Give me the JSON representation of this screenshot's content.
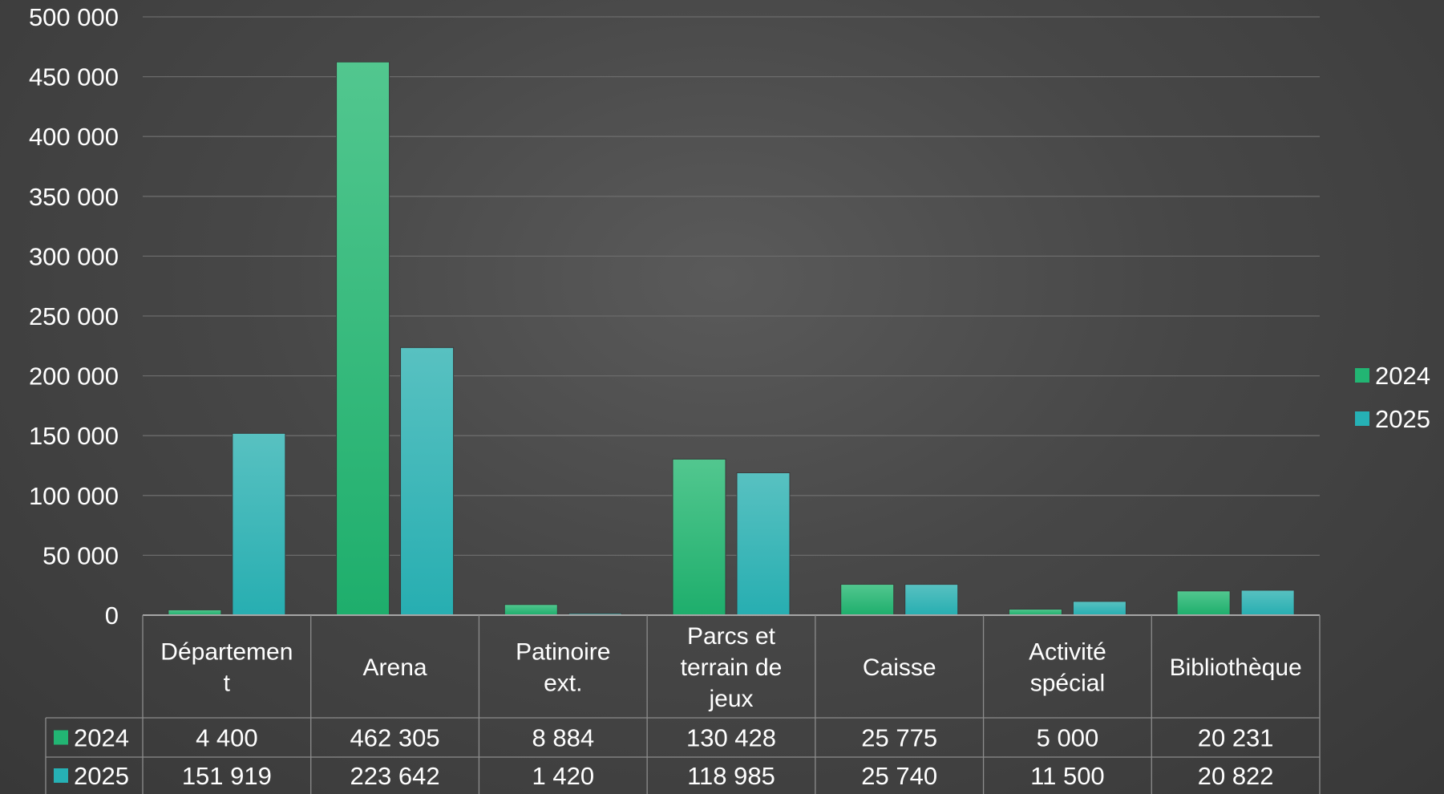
{
  "chart_data": {
    "type": "bar",
    "categories": [
      "Département",
      "Arena",
      "Patinoire ext.",
      "Parcs et terrain de jeux",
      "Caisse",
      "Activité spécial",
      "Bibliothèque"
    ],
    "category_label_lines": [
      [
        "Départemen",
        "t"
      ],
      [
        "Arena"
      ],
      [
        "Patinoire",
        "ext."
      ],
      [
        "Parcs et",
        "terrain de",
        "jeux"
      ],
      [
        "Caisse"
      ],
      [
        "Activité",
        "spécial"
      ],
      [
        "Bibliothèque"
      ]
    ],
    "series": [
      {
        "name": "2024",
        "color": "#22b573",
        "values": [
          4400,
          462305,
          8884,
          130428,
          25775,
          5000,
          20231
        ],
        "labels": [
          "4 400",
          "462 305",
          "8 884",
          "130 428",
          "25 775",
          "5 000",
          "20 231"
        ]
      },
      {
        "name": "2025",
        "color": "#26b1b5",
        "values": [
          151919,
          223642,
          1420,
          118985,
          25740,
          11500,
          20822
        ],
        "labels": [
          "151 919",
          "223 642",
          "1 420",
          "118 985",
          "25 740",
          "11 500",
          "20 822"
        ]
      }
    ],
    "ylim": [
      0,
      500000
    ],
    "yticks": [
      0,
      50000,
      100000,
      150000,
      200000,
      250000,
      300000,
      350000,
      400000,
      450000,
      500000
    ],
    "ytick_labels": [
      "0",
      "50 000",
      "100 000",
      "150 000",
      "200 000",
      "250 000",
      "300 000",
      "350 000",
      "400 000",
      "450 000",
      "500 000"
    ],
    "grid": true,
    "legend_position": "right",
    "data_table": true
  }
}
